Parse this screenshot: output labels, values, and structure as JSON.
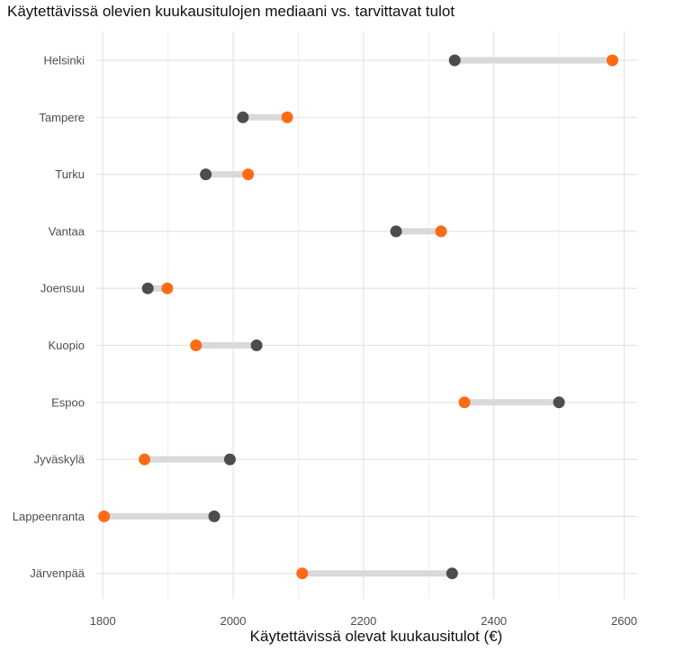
{
  "chart_data": {
    "type": "dumbbell",
    "title": "Käytettävissä olevien kuukausitulojen mediaani vs. tarvittavat tulot",
    "xlabel": "Käytettävissä olevat kuukausitulot (€)",
    "ylabel": "",
    "xlim": [
      1790,
      2620
    ],
    "xticks": [
      1800,
      2000,
      2200,
      2400,
      2600
    ],
    "categories": [
      "Helsinki",
      "Tampere",
      "Turku",
      "Vantaa",
      "Joensuu",
      "Kuopio",
      "Espoo",
      "Jyväskylä",
      "Lappeenranta",
      "Järvenpää"
    ],
    "series": [
      {
        "color": "#4d4d4d",
        "values": [
          2340,
          2015,
          1958,
          2250,
          1869,
          2036,
          2500,
          1995,
          1971,
          2336
        ]
      },
      {
        "color": "#ff6a13",
        "values": [
          2582,
          2083,
          2023,
          2319,
          1899,
          1943,
          2355,
          1864,
          1802,
          2106
        ]
      }
    ],
    "connector_color": "#d9d9d9",
    "grid": true,
    "legend": "none"
  }
}
